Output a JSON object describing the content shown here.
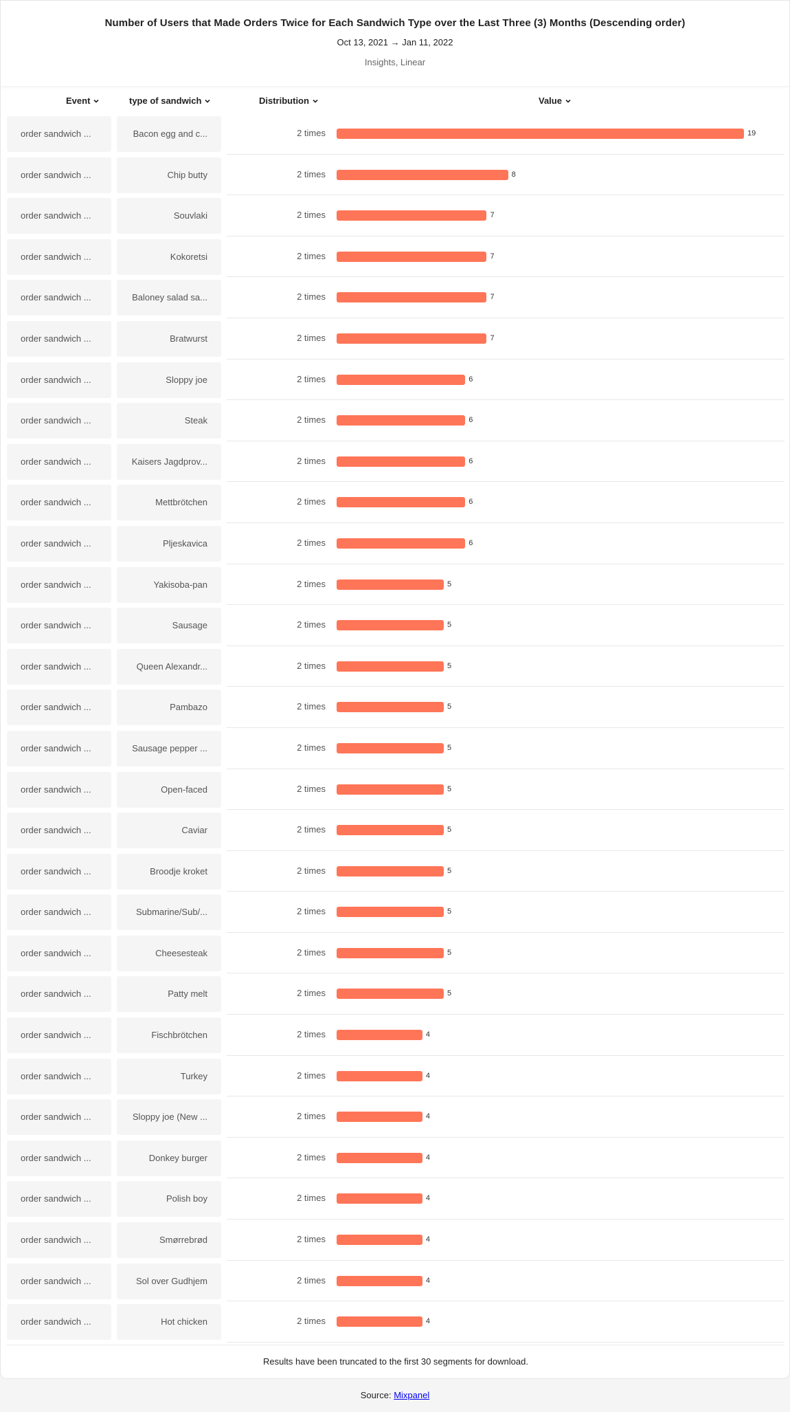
{
  "header": {
    "title": "Number of Users that Made Orders Twice for Each Sandwich Type over the Last Three (3) Months (Descending order)",
    "date_start": "Oct 13, 2021",
    "date_arrow": "→",
    "date_end": "Jan 11, 2022",
    "subtitle": "Insights, Linear"
  },
  "columns": {
    "event": "Event",
    "type": "type of sandwich",
    "distribution": "Distribution",
    "value": "Value"
  },
  "icons": {
    "column_sort": "chevron-down-icon"
  },
  "colors": {
    "bar": "#ff7557"
  },
  "truncation_note": "Results have been truncated to the first 30 segments for download.",
  "footer": {
    "source_label": "Source:",
    "source_link": "Mixpanel"
  },
  "chart_data": {
    "type": "bar",
    "orientation": "horizontal",
    "title": "Number of Users that Made Orders Twice for Each Sandwich Type over the Last Three (3) Months (Descending order)",
    "xlim": [
      0,
      19
    ],
    "rows": [
      {
        "event": "order sandwich ...",
        "type": "Bacon egg and c...",
        "distribution": "2 times",
        "value": 19
      },
      {
        "event": "order sandwich ...",
        "type": "Chip butty",
        "distribution": "2 times",
        "value": 8
      },
      {
        "event": "order sandwich ...",
        "type": "Souvlaki",
        "distribution": "2 times",
        "value": 7
      },
      {
        "event": "order sandwich ...",
        "type": "Kokoretsi",
        "distribution": "2 times",
        "value": 7
      },
      {
        "event": "order sandwich ...",
        "type": "Baloney salad sa...",
        "distribution": "2 times",
        "value": 7
      },
      {
        "event": "order sandwich ...",
        "type": "Bratwurst",
        "distribution": "2 times",
        "value": 7
      },
      {
        "event": "order sandwich ...",
        "type": "Sloppy joe",
        "distribution": "2 times",
        "value": 6
      },
      {
        "event": "order sandwich ...",
        "type": "Steak",
        "distribution": "2 times",
        "value": 6
      },
      {
        "event": "order sandwich ...",
        "type": "Kaisers Jagdprov...",
        "distribution": "2 times",
        "value": 6
      },
      {
        "event": "order sandwich ...",
        "type": "Mettbrötchen",
        "distribution": "2 times",
        "value": 6
      },
      {
        "event": "order sandwich ...",
        "type": "Pljeskavica",
        "distribution": "2 times",
        "value": 6
      },
      {
        "event": "order sandwich ...",
        "type": "Yakisoba-pan",
        "distribution": "2 times",
        "value": 5
      },
      {
        "event": "order sandwich ...",
        "type": "Sausage",
        "distribution": "2 times",
        "value": 5
      },
      {
        "event": "order sandwich ...",
        "type": "Queen Alexandr...",
        "distribution": "2 times",
        "value": 5
      },
      {
        "event": "order sandwich ...",
        "type": "Pambazo",
        "distribution": "2 times",
        "value": 5
      },
      {
        "event": "order sandwich ...",
        "type": "Sausage pepper ...",
        "distribution": "2 times",
        "value": 5
      },
      {
        "event": "order sandwich ...",
        "type": "Open-faced",
        "distribution": "2 times",
        "value": 5
      },
      {
        "event": "order sandwich ...",
        "type": "Caviar",
        "distribution": "2 times",
        "value": 5
      },
      {
        "event": "order sandwich ...",
        "type": "Broodje kroket",
        "distribution": "2 times",
        "value": 5
      },
      {
        "event": "order sandwich ...",
        "type": "Submarine/Sub/...",
        "distribution": "2 times",
        "value": 5
      },
      {
        "event": "order sandwich ...",
        "type": "Cheesesteak",
        "distribution": "2 times",
        "value": 5
      },
      {
        "event": "order sandwich ...",
        "type": "Patty melt",
        "distribution": "2 times",
        "value": 5
      },
      {
        "event": "order sandwich ...",
        "type": "Fischbrötchen",
        "distribution": "2 times",
        "value": 4
      },
      {
        "event": "order sandwich ...",
        "type": "Turkey",
        "distribution": "2 times",
        "value": 4
      },
      {
        "event": "order sandwich ...",
        "type": "Sloppy joe (New ...",
        "distribution": "2 times",
        "value": 4
      },
      {
        "event": "order sandwich ...",
        "type": "Donkey burger",
        "distribution": "2 times",
        "value": 4
      },
      {
        "event": "order sandwich ...",
        "type": "Polish boy",
        "distribution": "2 times",
        "value": 4
      },
      {
        "event": "order sandwich ...",
        "type": "Smørrebrød",
        "distribution": "2 times",
        "value": 4
      },
      {
        "event": "order sandwich ...",
        "type": "Sol over Gudhjem",
        "distribution": "2 times",
        "value": 4
      },
      {
        "event": "order sandwich ...",
        "type": "Hot chicken",
        "distribution": "2 times",
        "value": 4
      }
    ]
  }
}
